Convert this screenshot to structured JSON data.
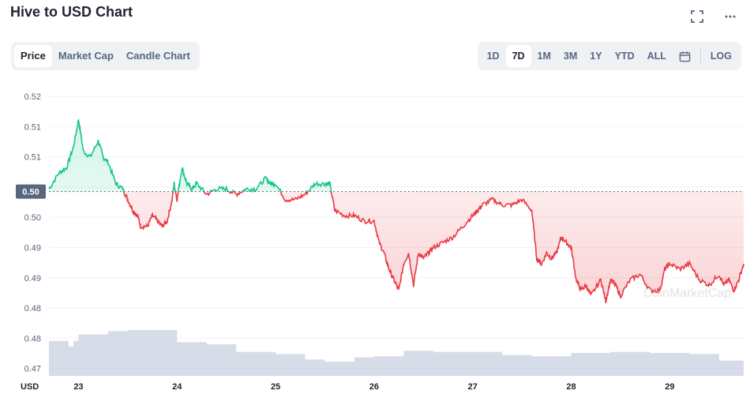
{
  "header": {
    "title": "Hive to USD Chart"
  },
  "tabs": [
    "Price",
    "Market Cap",
    "Candle Chart"
  ],
  "ranges": [
    "1D",
    "7D",
    "1M",
    "3M",
    "1Y",
    "YTD",
    "ALL"
  ],
  "log_label": "LOG",
  "active_tab": "Price",
  "active_range": "7D",
  "watermark": "CoinMarketCap",
  "colors": {
    "up": "#16c784",
    "down": "#ea3943",
    "volume": "#cfd6e4"
  },
  "chart_data": {
    "type": "line",
    "title": "Hive to USD Chart",
    "ylabel": "USD",
    "x_ticks": [
      "23",
      "24",
      "25",
      "26",
      "27",
      "28",
      "29"
    ],
    "y_ticks": [
      "0.52",
      "0.51",
      "0.51",
      "0.50",
      "0.50",
      "0.49",
      "0.49",
      "0.48",
      "0.48",
      "0.47"
    ],
    "current_price_label": "0.50",
    "reference_price": 0.502,
    "ylim": [
      0.4675,
      0.5225
    ],
    "xlim": [
      22.7,
      29.75
    ],
    "series": [
      {
        "x": [
          22.7,
          22.8,
          22.88,
          22.95,
          23.0,
          23.05,
          23.12,
          23.2,
          23.25,
          23.3,
          23.38,
          23.45,
          23.5,
          23.55,
          23.6,
          23.63,
          23.7,
          23.75,
          23.8,
          23.85,
          23.9,
          23.95,
          23.97,
          24.0,
          24.05,
          24.1,
          24.15,
          24.2,
          24.3,
          24.4,
          24.5,
          24.6,
          24.7,
          24.8,
          24.9,
          24.95,
          25.0,
          25.1,
          25.2,
          25.3,
          25.4,
          25.5,
          25.55,
          25.6,
          25.7,
          25.8,
          25.9,
          26.0,
          26.05,
          26.1,
          26.15,
          26.2,
          26.25,
          26.3,
          26.35,
          26.4,
          26.45,
          26.5,
          26.55,
          26.6,
          26.7,
          26.8,
          26.9,
          27.0,
          27.05,
          27.1,
          27.2,
          27.3,
          27.4,
          27.5,
          27.6,
          27.65,
          27.7,
          27.75,
          27.8,
          27.85,
          27.9,
          27.95,
          28.0,
          28.05,
          28.1,
          28.15,
          28.2,
          28.3,
          28.35,
          28.4,
          28.45,
          28.5,
          28.6,
          28.7,
          28.8,
          28.9,
          28.95,
          29.0,
          29.1,
          29.2,
          29.3,
          29.4,
          29.5,
          29.55,
          29.6,
          29.65,
          29.7,
          29.75
        ],
        "y": [
          0.5025,
          0.5055,
          0.5065,
          0.5105,
          0.5155,
          0.5095,
          0.5085,
          0.5115,
          0.5085,
          0.5075,
          0.5035,
          0.5025,
          0.5005,
          0.4985,
          0.4975,
          0.4955,
          0.4955,
          0.4975,
          0.4965,
          0.4955,
          0.4965,
          0.5005,
          0.5035,
          0.5005,
          0.5065,
          0.5035,
          0.5025,
          0.5035,
          0.5015,
          0.5025,
          0.5025,
          0.5015,
          0.5025,
          0.5025,
          0.5045,
          0.5035,
          0.5035,
          0.5005,
          0.5005,
          0.5015,
          0.5035,
          0.5035,
          0.5035,
          0.4985,
          0.4975,
          0.4975,
          0.4965,
          0.4965,
          0.4925,
          0.4905,
          0.4875,
          0.4855,
          0.4835,
          0.4885,
          0.4905,
          0.4845,
          0.4905,
          0.4895,
          0.4905,
          0.4915,
          0.4925,
          0.4935,
          0.4955,
          0.4975,
          0.4985,
          0.4995,
          0.5005,
          0.4995,
          0.4995,
          0.5005,
          0.4985,
          0.4895,
          0.4885,
          0.4905,
          0.4895,
          0.4905,
          0.4935,
          0.4925,
          0.4915,
          0.4855,
          0.4835,
          0.4845,
          0.4825,
          0.4855,
          0.4815,
          0.4855,
          0.4845,
          0.4825,
          0.4855,
          0.4865,
          0.4835,
          0.4835,
          0.4875,
          0.4885,
          0.4875,
          0.4885,
          0.4855,
          0.4845,
          0.4865,
          0.4845,
          0.4855,
          0.4835,
          0.4855,
          0.4885
        ]
      }
    ],
    "volume": {
      "x": [
        22.7,
        22.9,
        22.95,
        23.0,
        23.3,
        23.5,
        23.95,
        24.0,
        24.3,
        24.6,
        25.0,
        25.3,
        25.5,
        25.8,
        26.0,
        26.3,
        26.6,
        27.0,
        27.3,
        27.6,
        28.0,
        28.4,
        28.8,
        29.2,
        29.5,
        29.75
      ],
      "values": [
        0.32,
        0.27,
        0.32,
        0.38,
        0.41,
        0.42,
        0.42,
        0.31,
        0.29,
        0.22,
        0.2,
        0.15,
        0.13,
        0.17,
        0.18,
        0.23,
        0.22,
        0.22,
        0.19,
        0.18,
        0.21,
        0.22,
        0.21,
        0.2,
        0.14,
        0.13
      ]
    }
  }
}
